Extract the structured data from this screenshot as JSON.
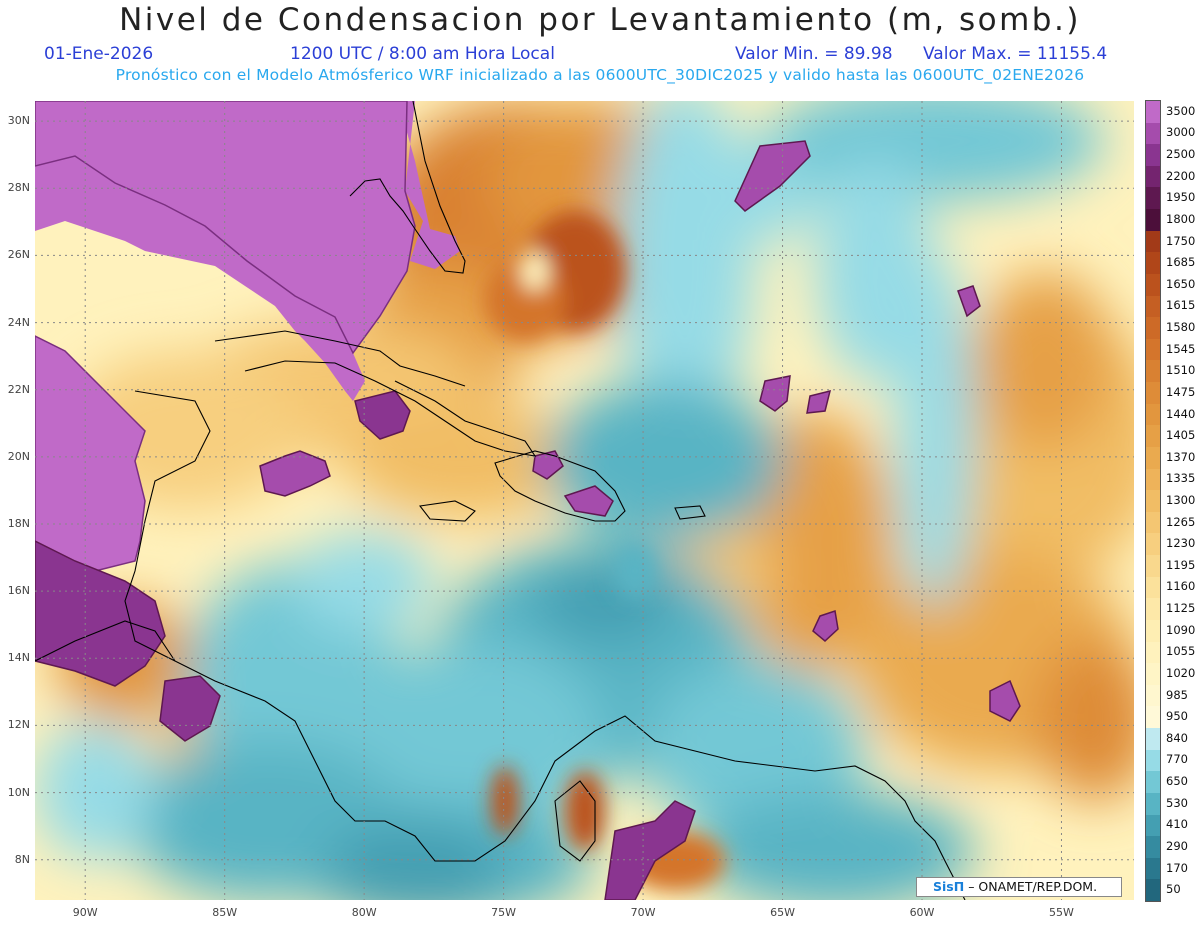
{
  "title": "Nivel de Condensacion por Levantamiento (m, somb.)",
  "subtitle": {
    "date": "01-Ene-2026",
    "time": "1200 UTC / 8:00 am Hora Local",
    "min_label": "Valor Min. = 89.98",
    "max_label": "Valor Max. = 11155.4",
    "model_run": "Pronóstico con el Modelo Atmósferico WRF inicializado a las 0600UTC_30DIC2025 y valido hasta las  0600UTC_02ENE2026"
  },
  "map": {
    "lat_range": [
      6.8,
      30.6
    ],
    "lon_range": [
      -91.8,
      -52.4
    ],
    "lat_labels": [
      "30N",
      "28N",
      "26N",
      "24N",
      "22N",
      "20N",
      "18N",
      "16N",
      "14N",
      "12N",
      "10N",
      "8N"
    ],
    "lon_labels": [
      "90W",
      "85W",
      "80W",
      "75W",
      "70W",
      "65W",
      "60W",
      "55W"
    ],
    "gridlines": "dotted"
  },
  "colorbar": {
    "labels": [
      "3500",
      "3000",
      "2500",
      "2200",
      "1950",
      "1800",
      "1750",
      "1685",
      "1650",
      "1615",
      "1580",
      "1545",
      "1510",
      "1475",
      "1440",
      "1405",
      "1370",
      "1335",
      "1300",
      "1265",
      "1230",
      "1195",
      "1160",
      "1125",
      "1090",
      "1055",
      "1020",
      "985",
      "950",
      "840",
      "770",
      "650",
      "530",
      "410",
      "290",
      "170",
      "50"
    ],
    "colors": [
      "#c06ac8",
      "#a54cac",
      "#8a3590",
      "#74246f",
      "#5e1850",
      "#4c0f3a",
      "#a23a18",
      "#b04619",
      "#bb521d",
      "#c55f23",
      "#cd6a27",
      "#d4752c",
      "#d98132",
      "#de8c38",
      "#e2963e",
      "#e6a046",
      "#eaaa4f",
      "#eeb35a",
      "#f1bd65",
      "#f4c672",
      "#f7cf7f",
      "#f9d88d",
      "#fbe19b",
      "#fde8a8",
      "#feeeb3",
      "#fff2bd",
      "#fff5c6",
      "#fff7cf",
      "#fff9d8",
      "#bfe9f0",
      "#96dbe6",
      "#73c8d5",
      "#58b4c4",
      "#449fb2",
      "#358ba0",
      "#2a788e",
      "#22677d"
    ]
  },
  "credit": {
    "brand": "SisΠ",
    "org": "– ONAMET/REP.DOM."
  },
  "colors": {
    "subtitle_blue": "#2b3fd6",
    "subtitle_cyan": "#29a8ee",
    "land_high": "#c06ac8",
    "coast": "#000000"
  }
}
